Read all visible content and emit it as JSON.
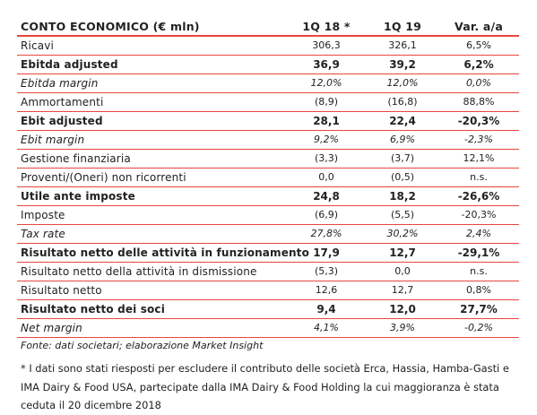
{
  "table": {
    "headers": [
      "CONTO ECONOMICO (€ mln)",
      "1Q 18 *",
      "1Q 19",
      "Var. a/a"
    ],
    "rows": [
      {
        "label": "Ricavi",
        "v1": "306,3",
        "v2": "326,1",
        "v3": "6,5%",
        "style": "normal"
      },
      {
        "label": "Ebitda adjusted",
        "v1": "36,9",
        "v2": "39,2",
        "v3": "6,2%",
        "style": "bold"
      },
      {
        "label": "Ebitda margin",
        "v1": "12,0%",
        "v2": "12,0%",
        "v3": "0,0%",
        "style": "italic"
      },
      {
        "label": "Ammortamenti",
        "v1": "(8,9)",
        "v2": "(16,8)",
        "v3": "88,8%",
        "style": "normal"
      },
      {
        "label": "Ebit adjusted",
        "v1": "28,1",
        "v2": "22,4",
        "v3": "-20,3%",
        "style": "bold"
      },
      {
        "label": "Ebit margin",
        "v1": "9,2%",
        "v2": "6,9%",
        "v3": "-2,3%",
        "style": "italic"
      },
      {
        "label": "Gestione finanziaria",
        "v1": "(3,3)",
        "v2": "(3,7)",
        "v3": "12,1%",
        "style": "normal"
      },
      {
        "label": "Proventi/(Oneri) non ricorrenti",
        "v1": "0,0",
        "v2": "(0,5)",
        "v3": "n.s.",
        "style": "normal"
      },
      {
        "label": "Utile ante imposte",
        "v1": "24,8",
        "v2": "18,2",
        "v3": "-26,6%",
        "style": "bold"
      },
      {
        "label": "Imposte",
        "v1": "(6,9)",
        "v2": "(5,5)",
        "v3": "-20,3%",
        "style": "normal"
      },
      {
        "label": "Tax rate",
        "v1": "27,8%",
        "v2": "30,2%",
        "v3": "2,4%",
        "style": "italic"
      },
      {
        "label": "Risultato netto delle attività in funzionamento",
        "v1": "17,9",
        "v2": "12,7",
        "v3": "-29,1%",
        "style": "bold"
      },
      {
        "label": "Risultato netto della attività in dismissione",
        "v1": "(5,3)",
        "v2": "0,0",
        "v3": "n.s.",
        "style": "normal"
      },
      {
        "label": "Risultato netto",
        "v1": "12,6",
        "v2": "12,7",
        "v3": "0,8%",
        "style": "normal"
      },
      {
        "label": "Risultato netto dei soci",
        "v1": "9,4",
        "v2": "12,0",
        "v3": "27,7%",
        "style": "bold"
      },
      {
        "label": "Net margin",
        "v1": "4,1%",
        "v2": "3,9%",
        "v3": "-0,2%",
        "style": "italic"
      }
    ]
  },
  "source": "Fonte: dati societari; elaborazione Market Insight",
  "note": "* I dati sono stati riesposti per escludere il contributo delle società Erca, Hassia, Hamba-Gasti e IMA Dairy & Food USA, partecipate dalla IMA Dairy & Food Holding la cui maggioranza è stata ceduta il 20 dicembre 2018",
  "colors": {
    "accent": "#e8473c",
    "text": "#222222"
  }
}
